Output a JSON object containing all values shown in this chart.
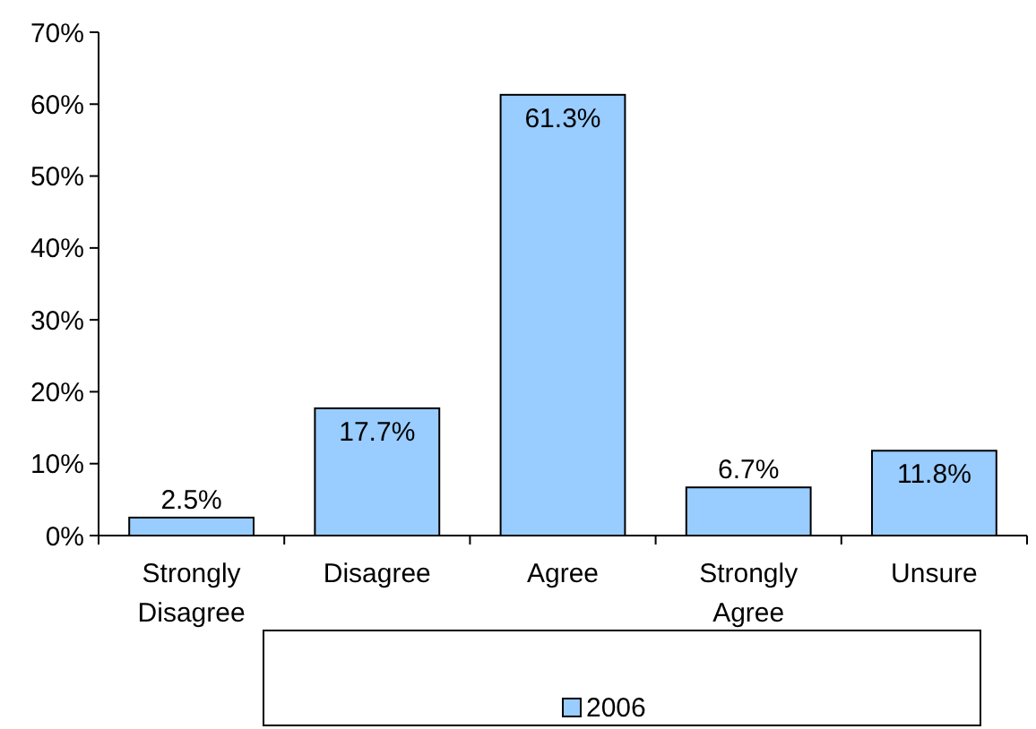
{
  "chart_data": {
    "type": "bar",
    "categories": [
      "Strongly Disagree",
      "Disagree",
      "Agree",
      "Strongly Agree",
      "Unsure"
    ],
    "series": [
      {
        "name": "2006",
        "color": "#99ccff",
        "values": [
          2.5,
          17.7,
          61.3,
          6.7,
          11.8
        ],
        "value_labels": [
          "2.5%",
          "17.7%",
          "61.3%",
          "6.7%",
          "11.8%"
        ]
      }
    ],
    "ylim": [
      0,
      70
    ],
    "yticks": [
      {
        "value": 0,
        "label": "0%"
      },
      {
        "value": 10,
        "label": "10%"
      },
      {
        "value": 20,
        "label": "20%"
      },
      {
        "value": 30,
        "label": "30%"
      },
      {
        "value": 40,
        "label": "40%"
      },
      {
        "value": 50,
        "label": "50%"
      },
      {
        "value": 60,
        "label": "60%"
      },
      {
        "value": 70,
        "label": "70%"
      }
    ],
    "legend": "bottom"
  }
}
